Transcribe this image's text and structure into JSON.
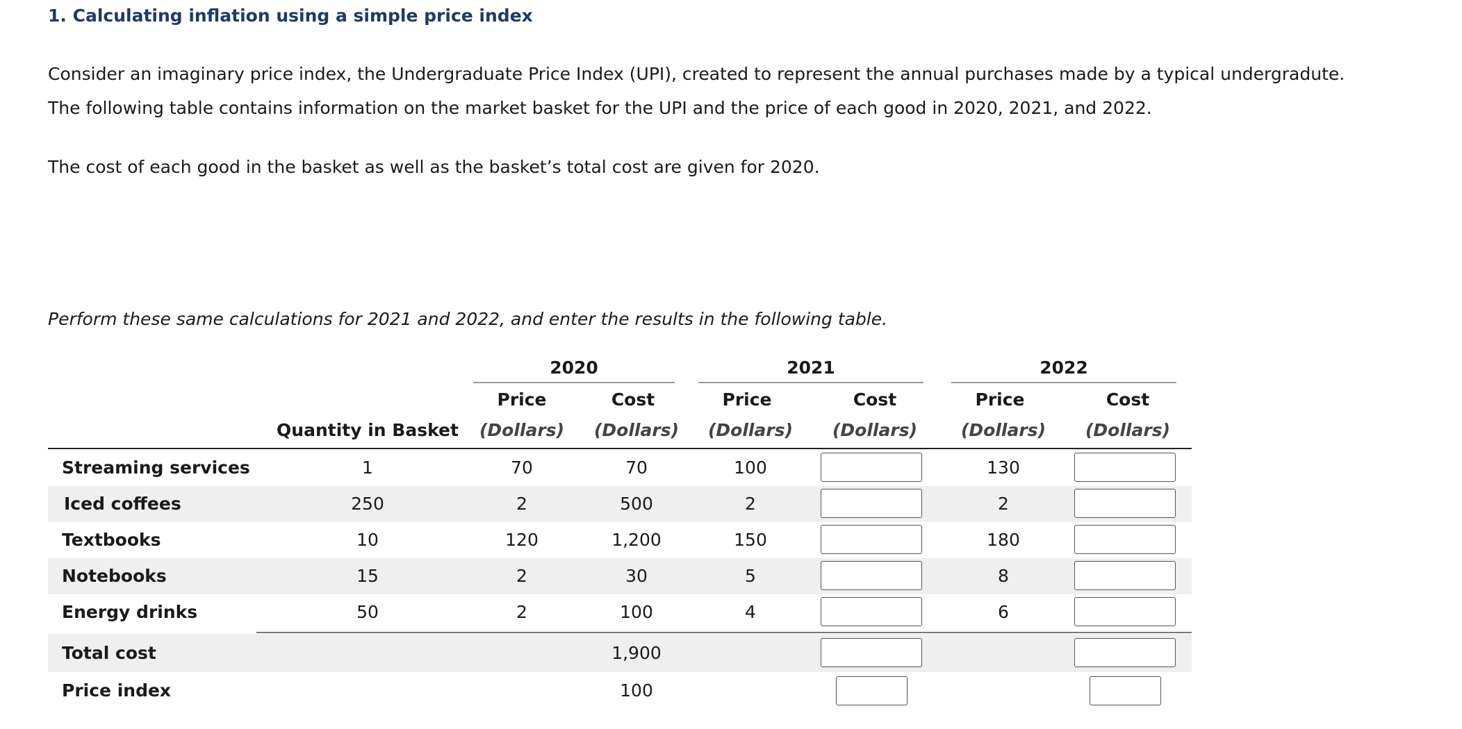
{
  "title": "1. Calculating inflation using a simple price index",
  "intro": {
    "line1": "Consider an imaginary price index, the Undergraduate Price Index (UPI), created to represent the annual purchases made by a typical undergradute.",
    "line2": "The following table contains information on the market basket for the UPI and the price of each good in 2020, 2021, and 2022.",
    "cost_note": "The cost of each good in the basket as well as the basket’s total cost are given for 2020.",
    "instruction": "Perform these same calculations for 2021 and 2022, and enter the results in the following table."
  },
  "table": {
    "years": [
      "2020",
      "2021",
      "2022"
    ],
    "price_label": "Price",
    "cost_label": "Cost",
    "unit_label": "(Dollars)",
    "quantity_header": "Quantity in Basket",
    "rows": [
      {
        "good": "Streaming services",
        "quantity": "1",
        "price_2020": "70",
        "cost_2020": "70",
        "price_2021": "100",
        "price_2022": "130"
      },
      {
        "good": "Iced coffees",
        "quantity": "250",
        "price_2020": "2",
        "cost_2020": "500",
        "price_2021": "2",
        "price_2022": "2"
      },
      {
        "good": "Textbooks",
        "quantity": "10",
        "price_2020": "120",
        "cost_2020": "1,200",
        "price_2021": "150",
        "price_2022": "180"
      },
      {
        "good": "Notebooks",
        "quantity": "15",
        "price_2020": "2",
        "cost_2020": "30",
        "price_2021": "5",
        "price_2022": "8"
      },
      {
        "good": "Energy drinks",
        "quantity": "50",
        "price_2020": "2",
        "cost_2020": "100",
        "price_2021": "4",
        "price_2022": "6"
      }
    ],
    "total_cost": {
      "label": "Total cost",
      "value_2020": "1,900"
    },
    "price_index": {
      "label": "Price index",
      "value_2020": "100"
    }
  }
}
